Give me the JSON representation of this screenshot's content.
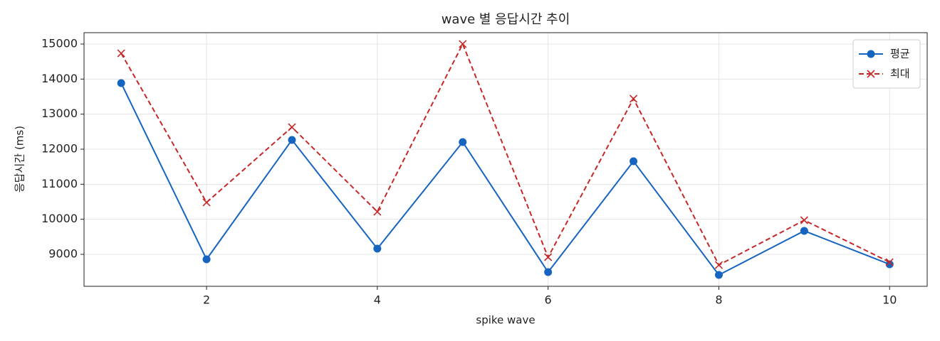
{
  "chart_data": {
    "type": "line",
    "title": "wave 별 응답시간 추이",
    "x_label": "spike wave",
    "y_label": "응답시간 (ms)",
    "x": [
      1,
      2,
      3,
      4,
      5,
      6,
      7,
      8,
      9,
      10
    ],
    "series": [
      {
        "name": "평균",
        "color": "#1565c0",
        "linestyle": "solid",
        "marker": "o",
        "values": [
          13885,
          8858,
          12263,
          9162,
          12203,
          8493,
          11655,
          8412,
          9669,
          8716
        ]
      },
      {
        "name": "최대",
        "color": "#c62828",
        "linestyle": "dashed",
        "marker": "x",
        "values": [
          14736,
          10480,
          12628,
          10216,
          15000,
          8919,
          13439,
          8696,
          9973,
          8777
        ]
      }
    ],
    "xlim": [
      0.565,
      10.44
    ],
    "xticks": [
      2,
      4,
      6,
      8,
      10
    ],
    "ylim": [
      8088,
      15324
    ],
    "yticks": [
      9000,
      10000,
      11000,
      12000,
      13000,
      14000,
      15000
    ],
    "grid": true,
    "legend": "upper-right"
  }
}
